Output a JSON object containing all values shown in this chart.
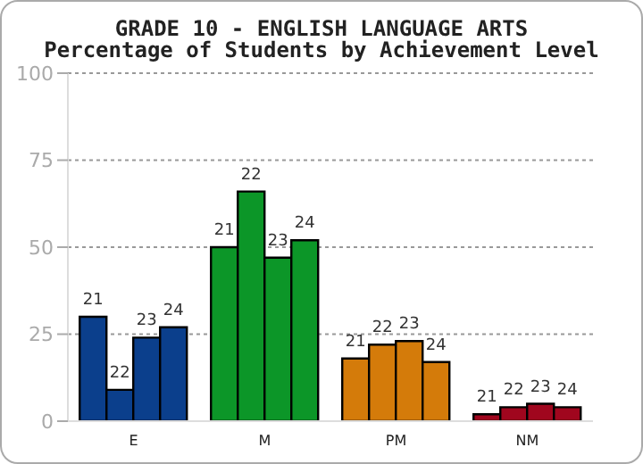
{
  "chart_data": {
    "type": "bar",
    "title": "GRADE 10 - ENGLISH LANGUAGE ARTS",
    "subtitle": "Percentage of Students by Achievement Level",
    "categories": [
      "E",
      "M",
      "PM",
      "NM"
    ],
    "series": [
      {
        "name": "21",
        "colors": [
          "#0b3f8c",
          "#0c9628",
          "#d47b0a",
          "#a0061e"
        ],
        "values": [
          30,
          50,
          18,
          2
        ]
      },
      {
        "name": "22",
        "colors": [
          "#0b3f8c",
          "#0c9628",
          "#d47b0a",
          "#a0061e"
        ],
        "values": [
          9,
          66,
          22,
          4
        ]
      },
      {
        "name": "23",
        "colors": [
          "#0b3f8c",
          "#0c9628",
          "#d47b0a",
          "#a0061e"
        ],
        "values": [
          24,
          47,
          23,
          5
        ]
      },
      {
        "name": "24",
        "colors": [
          "#0b3f8c",
          "#0c9628",
          "#d47b0a",
          "#a0061e"
        ],
        "values": [
          27,
          52,
          17,
          4
        ]
      }
    ],
    "ylim": [
      0,
      100
    ],
    "yticks": [
      0,
      25,
      50,
      75,
      100
    ],
    "grid": "y",
    "legend": false
  }
}
